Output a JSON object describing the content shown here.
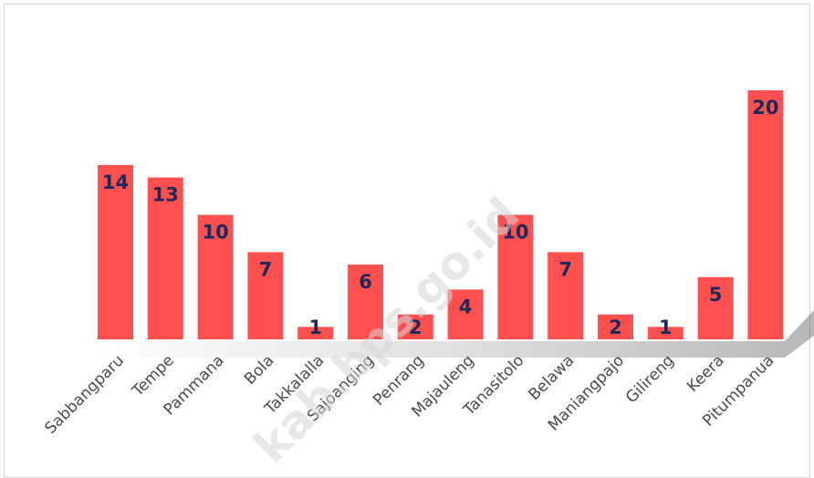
{
  "watermark": "kab.bps.go.id",
  "chart_data": {
    "type": "bar",
    "categories": [
      "Sabbangparu",
      "Tempe",
      "Pammana",
      "Bola",
      "Takkalalla",
      "Sajoanging",
      "Penrang",
      "Majauleng",
      "Tanasitolo",
      "Belawa",
      "Maniangpajo",
      "Gilireng",
      "Keera",
      "Pitumpanua"
    ],
    "values": [
      14,
      13,
      10,
      7,
      1,
      6,
      2,
      4,
      10,
      7,
      2,
      1,
      5,
      20
    ],
    "title": "",
    "xlabel": "",
    "ylabel": "",
    "ylim": [
      0,
      20
    ],
    "bar_color": "#ff5050",
    "label_color": "#1b2a5a",
    "data_labels": "inside-end",
    "grid": false,
    "legend": "none"
  }
}
